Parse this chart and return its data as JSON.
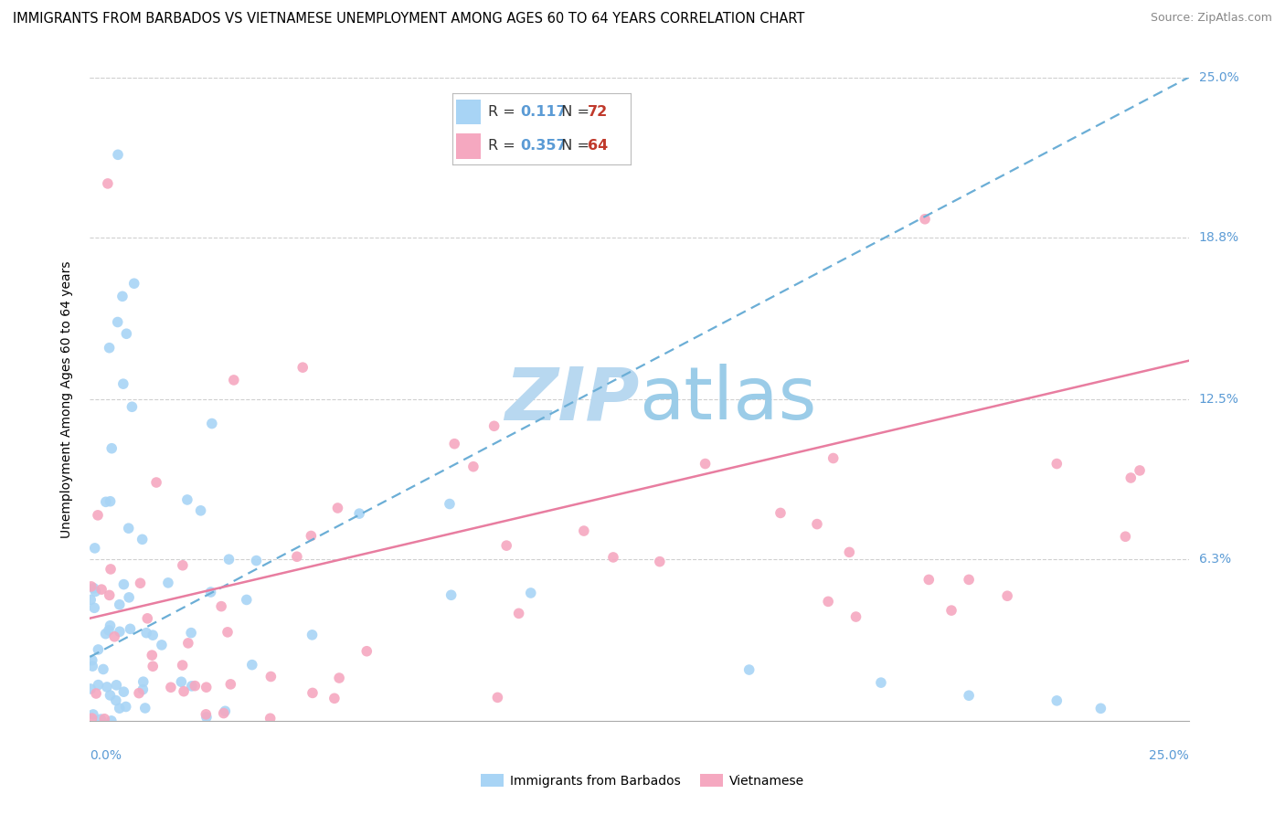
{
  "title": "IMMIGRANTS FROM BARBADOS VS VIETNAMESE UNEMPLOYMENT AMONG AGES 60 TO 64 YEARS CORRELATION CHART",
  "source": "Source: ZipAtlas.com",
  "ylabel": "Unemployment Among Ages 60 to 64 years",
  "ytick_vals": [
    0.0,
    0.063,
    0.125,
    0.188,
    0.25
  ],
  "ytick_labels": [
    "",
    "6.3%",
    "12.5%",
    "18.8%",
    "25.0%"
  ],
  "xlim": [
    0.0,
    0.25
  ],
  "ylim": [
    0.0,
    0.25
  ],
  "legend_R1": "0.117",
  "legend_N1": "72",
  "legend_R2": "0.357",
  "legend_N2": "64",
  "label1": "Immigrants from Barbados",
  "label2": "Vietnamese",
  "barbados_color": "#a8d4f5",
  "vietnamese_color": "#f5a8c0",
  "barbados_line_color": "#6baed6",
  "vietnamese_line_color": "#e87da0",
  "R_color": "#5b9bd5",
  "N_color": "#c0392b",
  "watermark_color": "#cce5f6",
  "title_fontsize": 10.5,
  "axis_label_fontsize": 10,
  "tick_label_fontsize": 10,
  "legend_fontsize": 11,
  "source_fontsize": 9,
  "grid_color": "#d0d0d0",
  "spine_color": "#aaaaaa"
}
